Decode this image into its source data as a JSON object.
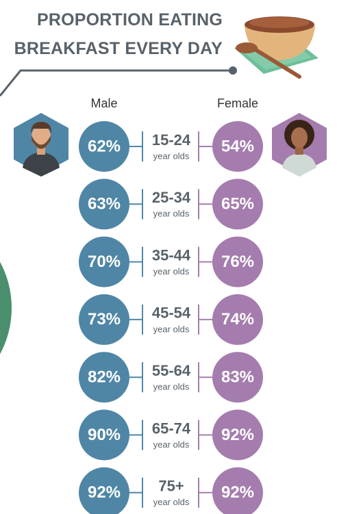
{
  "chart_data": {
    "type": "paired-circles",
    "title": "PROPORTION EATING BREAKFAST EVERY DAY",
    "categories": [
      "15-24",
      "25-34",
      "35-44",
      "45-54",
      "55-64",
      "65-74",
      "75+"
    ],
    "unit_label": "year olds",
    "series": [
      {
        "name": "Male",
        "color": "#4f86a6",
        "values": [
          62,
          63,
          70,
          73,
          82,
          90,
          92
        ],
        "value_labels": [
          "62%",
          "63%",
          "70%",
          "73%",
          "82%",
          "90%",
          "92%"
        ]
      },
      {
        "name": "Female",
        "color": "#a57cae",
        "values": [
          54,
          65,
          76,
          74,
          83,
          92,
          92
        ],
        "value_labels": [
          "54%",
          "65%",
          "76%",
          "74%",
          "83%",
          "92%",
          "92%"
        ]
      }
    ]
  }
}
